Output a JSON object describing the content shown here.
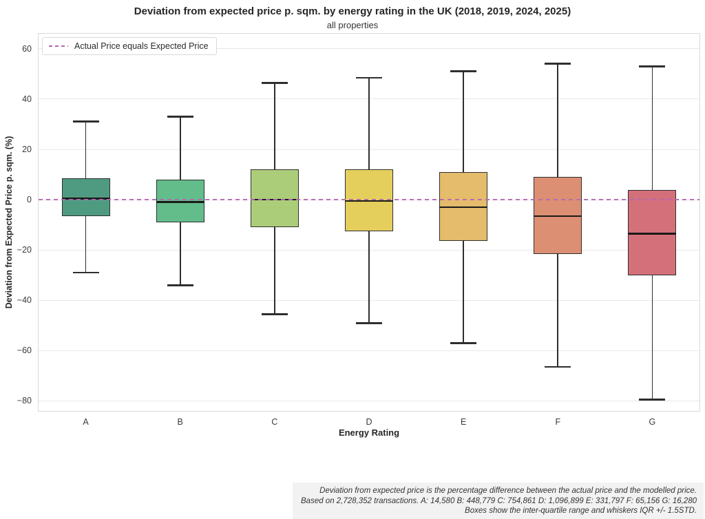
{
  "chart_data": {
    "type": "box",
    "title": "Deviation from expected price p. sqm. by energy rating in the UK (2018, 2019, 2024, 2025)",
    "subtitle": "all properties",
    "xlabel": "Energy Rating",
    "ylabel": "Deviation from Expected Price p. sqm. (%)",
    "ylim": [
      -84,
      66
    ],
    "yticks": [
      60,
      40,
      20,
      0,
      -20,
      -40,
      -60,
      -80
    ],
    "ytick_labels": [
      "60",
      "40",
      "20",
      "0",
      "−20",
      "−40",
      "−60",
      "−80"
    ],
    "grid": "horizontal",
    "legend_position": "upper-left",
    "zero_line": {
      "value": 0,
      "style": "dashed",
      "color": "#b469b4"
    },
    "categories": [
      "A",
      "B",
      "C",
      "D",
      "E",
      "F",
      "G"
    ],
    "series": [
      {
        "category": "A",
        "color": "#4f9b82",
        "whisker_low": -29,
        "q1": -6.5,
        "median": 0.5,
        "q3": 8.5,
        "whisker_high": 31
      },
      {
        "category": "B",
        "color": "#62bd8a",
        "whisker_low": -34,
        "q1": -9,
        "median": -1,
        "q3": 8,
        "whisker_high": 33
      },
      {
        "category": "C",
        "color": "#abcd79",
        "whisker_low": -45.5,
        "q1": -11,
        "median": 0,
        "q3": 12,
        "whisker_high": 46.5
      },
      {
        "category": "D",
        "color": "#e4cf5d",
        "whisker_low": -49,
        "q1": -12.5,
        "median": -0.5,
        "q3": 12,
        "whisker_high": 48.5
      },
      {
        "category": "E",
        "color": "#e5bb6c",
        "whisker_low": -57,
        "q1": -16.5,
        "median": -3,
        "q3": 11,
        "whisker_high": 51
      },
      {
        "category": "F",
        "color": "#dd8f73",
        "whisker_low": -66.5,
        "q1": -21.5,
        "median": -6.5,
        "q3": 9,
        "whisker_high": 54
      },
      {
        "category": "G",
        "color": "#d4707a",
        "whisker_low": -79.5,
        "q1": -30,
        "median": -13.5,
        "q3": 4,
        "whisker_high": 53
      }
    ]
  },
  "legend": {
    "label": "Actual Price equals Expected Price",
    "line_color": "#b469b4"
  },
  "footnote": {
    "line1": "Deviation from expected price is the percentage difference between the actual price and the modelled price.",
    "line2": "Based on 2,728,352 transactions. A: 14,580 B: 448,779 C: 754,861 D: 1,096,899 E: 331,797 F: 65,156 G: 16,280",
    "line3": "Boxes show the inter-quartile range and whiskers IQR +/- 1.5STD."
  }
}
